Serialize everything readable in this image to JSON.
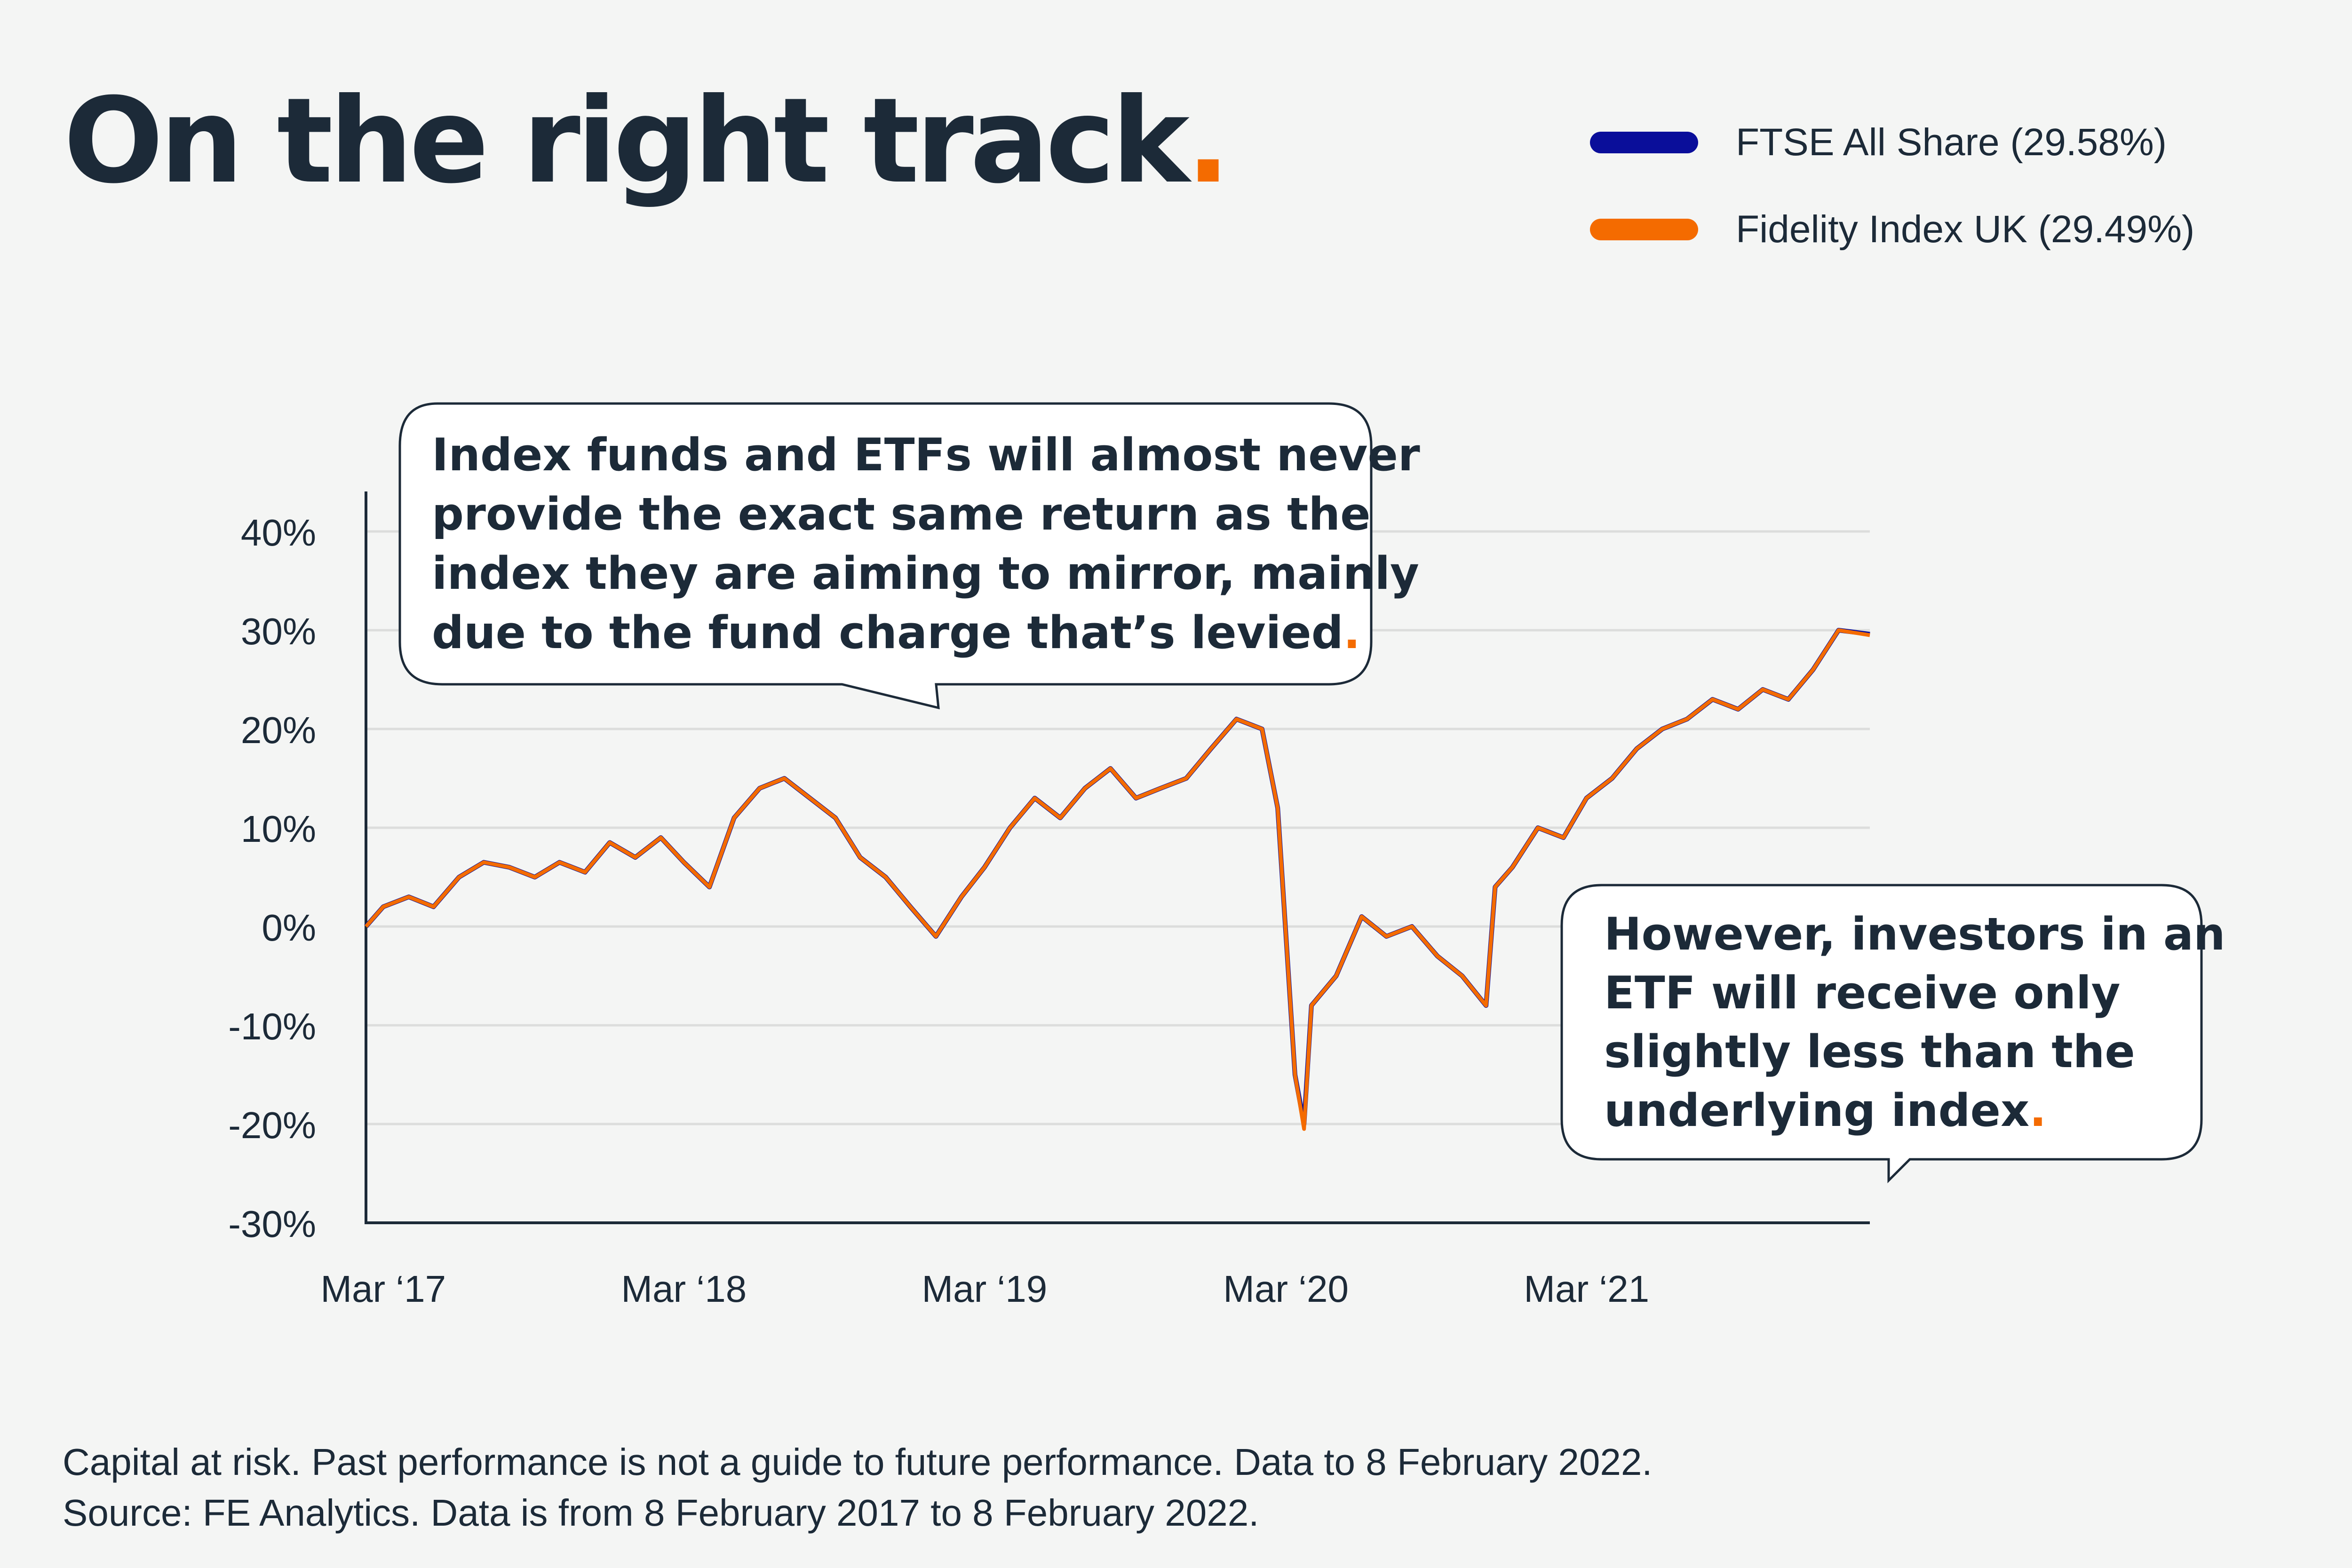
{
  "title": "On the right track",
  "title_dot": ".",
  "legend": [
    {
      "label": "FTSE All Share (29.58%)",
      "color": "#0a0e9a"
    },
    {
      "label": "Fidelity Index UK (29.49%)",
      "color": "#f46b00"
    }
  ],
  "callouts": {
    "top": {
      "lines": [
        "Index funds and ETFs will almost never",
        "provide the exact same return as the",
        "index they are aiming to mirror, mainly",
        "due to the fund charge that’s levied"
      ],
      "dot": "."
    },
    "bottom": {
      "lines": [
        "However, investors in an",
        "ETF will receive only",
        "slightly less than the",
        "underlying index"
      ],
      "dot": "."
    }
  },
  "footer": {
    "line1": "Capital at risk. Past performance is not a guide to future performance. Data to 8 February 2022.",
    "line2": "Source: FE Analytics. Data is from 8 February 2017 to 8 February 2022."
  },
  "chart_data": {
    "type": "line",
    "y_tick_labels": [
      "40%",
      "30%",
      "20%",
      "10%",
      "0%",
      "-10%",
      "-20%",
      "-30%"
    ],
    "y_ticks": [
      40,
      30,
      20,
      10,
      0,
      -10,
      -20,
      -30
    ],
    "ylim": [
      -30,
      45
    ],
    "x_tick_labels": [
      "Mar ‘17",
      "Mar ‘18",
      "Mar ‘19",
      "Mar ‘20",
      "Mar ‘21"
    ],
    "x_ticks": [
      "2017-03-01",
      "2018-03-01",
      "2019-03-01",
      "2020-03-01",
      "2021-03-01"
    ],
    "xlim": [
      "2017-02-08",
      "2022-02-08"
    ],
    "grid": true,
    "legend_position": "top-right",
    "series": [
      {
        "name": "FTSE All Share (29.58%)",
        "color": "#0a0e9a",
        "points": [
          [
            "2017-02-08",
            0
          ],
          [
            "2017-03-01",
            2
          ],
          [
            "2017-04-01",
            3
          ],
          [
            "2017-05-01",
            2
          ],
          [
            "2017-06-01",
            5
          ],
          [
            "2017-07-01",
            6.5
          ],
          [
            "2017-08-01",
            6
          ],
          [
            "2017-09-01",
            5
          ],
          [
            "2017-10-01",
            6.5
          ],
          [
            "2017-11-01",
            5.5
          ],
          [
            "2017-12-01",
            8.5
          ],
          [
            "2018-01-01",
            7
          ],
          [
            "2018-02-01",
            9
          ],
          [
            "2018-03-01",
            6.5
          ],
          [
            "2018-04-01",
            4
          ],
          [
            "2018-05-01",
            11
          ],
          [
            "2018-06-01",
            14
          ],
          [
            "2018-07-01",
            15
          ],
          [
            "2018-08-01",
            13
          ],
          [
            "2018-09-01",
            11
          ],
          [
            "2018-10-01",
            7
          ],
          [
            "2018-11-01",
            5
          ],
          [
            "2018-12-01",
            2
          ],
          [
            "2019-01-01",
            -1
          ],
          [
            "2019-02-01",
            3
          ],
          [
            "2019-03-01",
            6
          ],
          [
            "2019-04-01",
            10
          ],
          [
            "2019-05-01",
            13
          ],
          [
            "2019-06-01",
            11
          ],
          [
            "2019-07-01",
            14
          ],
          [
            "2019-08-01",
            16
          ],
          [
            "2019-09-01",
            13
          ],
          [
            "2019-10-01",
            14
          ],
          [
            "2019-11-01",
            15
          ],
          [
            "2019-12-01",
            18
          ],
          [
            "2020-01-01",
            21
          ],
          [
            "2020-02-01",
            20
          ],
          [
            "2020-02-20",
            12
          ],
          [
            "2020-03-12",
            -15
          ],
          [
            "2020-03-23",
            -20
          ],
          [
            "2020-04-01",
            -8
          ],
          [
            "2020-05-01",
            -5
          ],
          [
            "2020-06-01",
            1
          ],
          [
            "2020-07-01",
            -1
          ],
          [
            "2020-08-01",
            0
          ],
          [
            "2020-09-01",
            -3
          ],
          [
            "2020-10-01",
            -5
          ],
          [
            "2020-10-30",
            -8
          ],
          [
            "2020-11-10",
            4
          ],
          [
            "2020-12-01",
            6
          ],
          [
            "2021-01-01",
            10
          ],
          [
            "2021-02-01",
            9
          ],
          [
            "2021-03-01",
            13
          ],
          [
            "2021-04-01",
            15
          ],
          [
            "2021-05-01",
            18
          ],
          [
            "2021-06-01",
            20
          ],
          [
            "2021-07-01",
            21
          ],
          [
            "2021-08-01",
            23
          ],
          [
            "2021-09-01",
            22
          ],
          [
            "2021-10-01",
            24
          ],
          [
            "2021-11-01",
            23
          ],
          [
            "2021-12-01",
            26
          ],
          [
            "2022-01-01",
            30
          ],
          [
            "2022-02-08",
            29.6
          ]
        ]
      },
      {
        "name": "Fidelity Index UK (29.49%)",
        "color": "#f46b00",
        "points": [
          [
            "2017-02-08",
            0
          ],
          [
            "2017-03-01",
            2
          ],
          [
            "2017-04-01",
            3
          ],
          [
            "2017-05-01",
            2
          ],
          [
            "2017-06-01",
            5
          ],
          [
            "2017-07-01",
            6.5
          ],
          [
            "2017-08-01",
            6
          ],
          [
            "2017-09-01",
            5
          ],
          [
            "2017-10-01",
            6.5
          ],
          [
            "2017-11-01",
            5.5
          ],
          [
            "2017-12-01",
            8.5
          ],
          [
            "2018-01-01",
            7
          ],
          [
            "2018-02-01",
            9
          ],
          [
            "2018-03-01",
            6.5
          ],
          [
            "2018-04-01",
            4
          ],
          [
            "2018-05-01",
            11
          ],
          [
            "2018-06-01",
            14
          ],
          [
            "2018-07-01",
            15
          ],
          [
            "2018-08-01",
            13
          ],
          [
            "2018-09-01",
            11
          ],
          [
            "2018-10-01",
            7
          ],
          [
            "2018-11-01",
            5
          ],
          [
            "2018-12-01",
            2
          ],
          [
            "2019-01-01",
            -1
          ],
          [
            "2019-02-01",
            3
          ],
          [
            "2019-03-01",
            6
          ],
          [
            "2019-04-01",
            10
          ],
          [
            "2019-05-01",
            13
          ],
          [
            "2019-06-01",
            11
          ],
          [
            "2019-07-01",
            14
          ],
          [
            "2019-08-01",
            16
          ],
          [
            "2019-09-01",
            13
          ],
          [
            "2019-10-01",
            14
          ],
          [
            "2019-11-01",
            15
          ],
          [
            "2019-12-01",
            18
          ],
          [
            "2020-01-01",
            21
          ],
          [
            "2020-02-01",
            20
          ],
          [
            "2020-02-20",
            12
          ],
          [
            "2020-03-12",
            -15
          ],
          [
            "2020-03-23",
            -20.5
          ],
          [
            "2020-04-01",
            -8
          ],
          [
            "2020-05-01",
            -5
          ],
          [
            "2020-06-01",
            1
          ],
          [
            "2020-07-01",
            -1
          ],
          [
            "2020-08-01",
            0
          ],
          [
            "2020-09-01",
            -3
          ],
          [
            "2020-10-01",
            -5
          ],
          [
            "2020-10-30",
            -8
          ],
          [
            "2020-11-10",
            4
          ],
          [
            "2020-12-01",
            6
          ],
          [
            "2021-01-01",
            10
          ],
          [
            "2021-02-01",
            9
          ],
          [
            "2021-03-01",
            13
          ],
          [
            "2021-04-01",
            15
          ],
          [
            "2021-05-01",
            18
          ],
          [
            "2021-06-01",
            20
          ],
          [
            "2021-07-01",
            21
          ],
          [
            "2021-08-01",
            23
          ],
          [
            "2021-09-01",
            22
          ],
          [
            "2021-10-01",
            24
          ],
          [
            "2021-11-01",
            23
          ],
          [
            "2021-12-01",
            26
          ],
          [
            "2022-01-01",
            30
          ],
          [
            "2022-02-08",
            29.5
          ]
        ]
      }
    ]
  }
}
